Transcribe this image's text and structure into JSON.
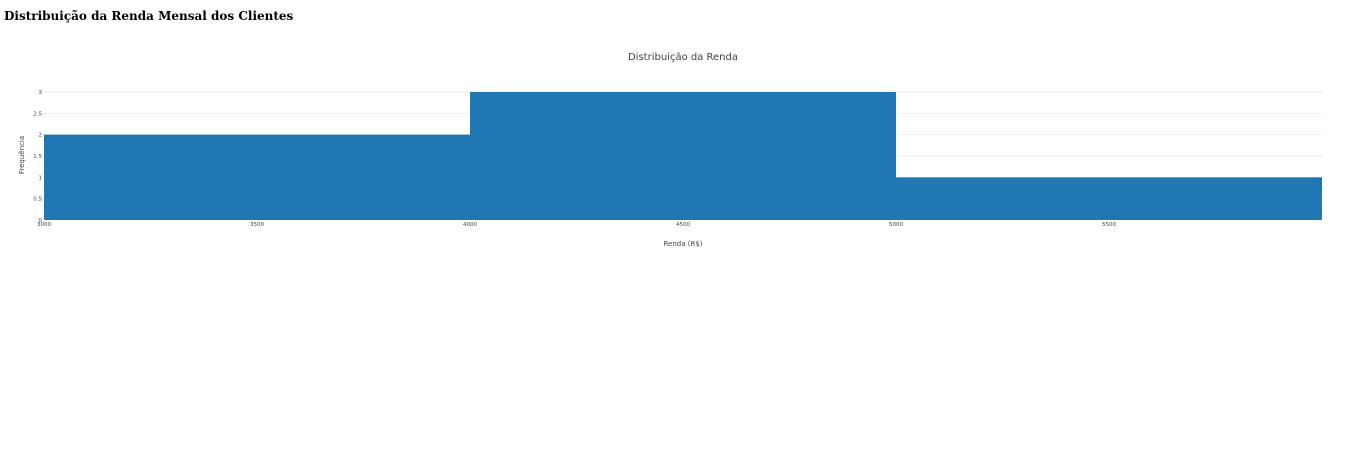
{
  "page": {
    "heading": "Distribuição da Renda Mensal dos Clientes"
  },
  "chart_data": {
    "type": "bar",
    "title": "Distribuição da Renda",
    "xlabel": "Renda (R$)",
    "ylabel": "Frequência",
    "bins": [
      {
        "start": 3000,
        "end": 4000,
        "count": 2
      },
      {
        "start": 4000,
        "end": 5000,
        "count": 3
      },
      {
        "start": 5000,
        "end": 6000,
        "count": 1
      }
    ],
    "xlim": [
      3000,
      6000
    ],
    "ylim": [
      0,
      3
    ],
    "x_ticks": [
      3000,
      3500,
      4000,
      4500,
      5000,
      5500
    ],
    "x_tick_labels": [
      "3000",
      "3500",
      "4000",
      "4500",
      "5000",
      "5500"
    ],
    "y_ticks": [
      0,
      0.5,
      1,
      1.5,
      2,
      2.5,
      3
    ],
    "y_tick_labels": [
      "0",
      "0.5",
      "1",
      "1.5",
      "2",
      "2.5",
      "3"
    ],
    "bar_color": "#1f77b4",
    "grid": true,
    "legend": false
  }
}
